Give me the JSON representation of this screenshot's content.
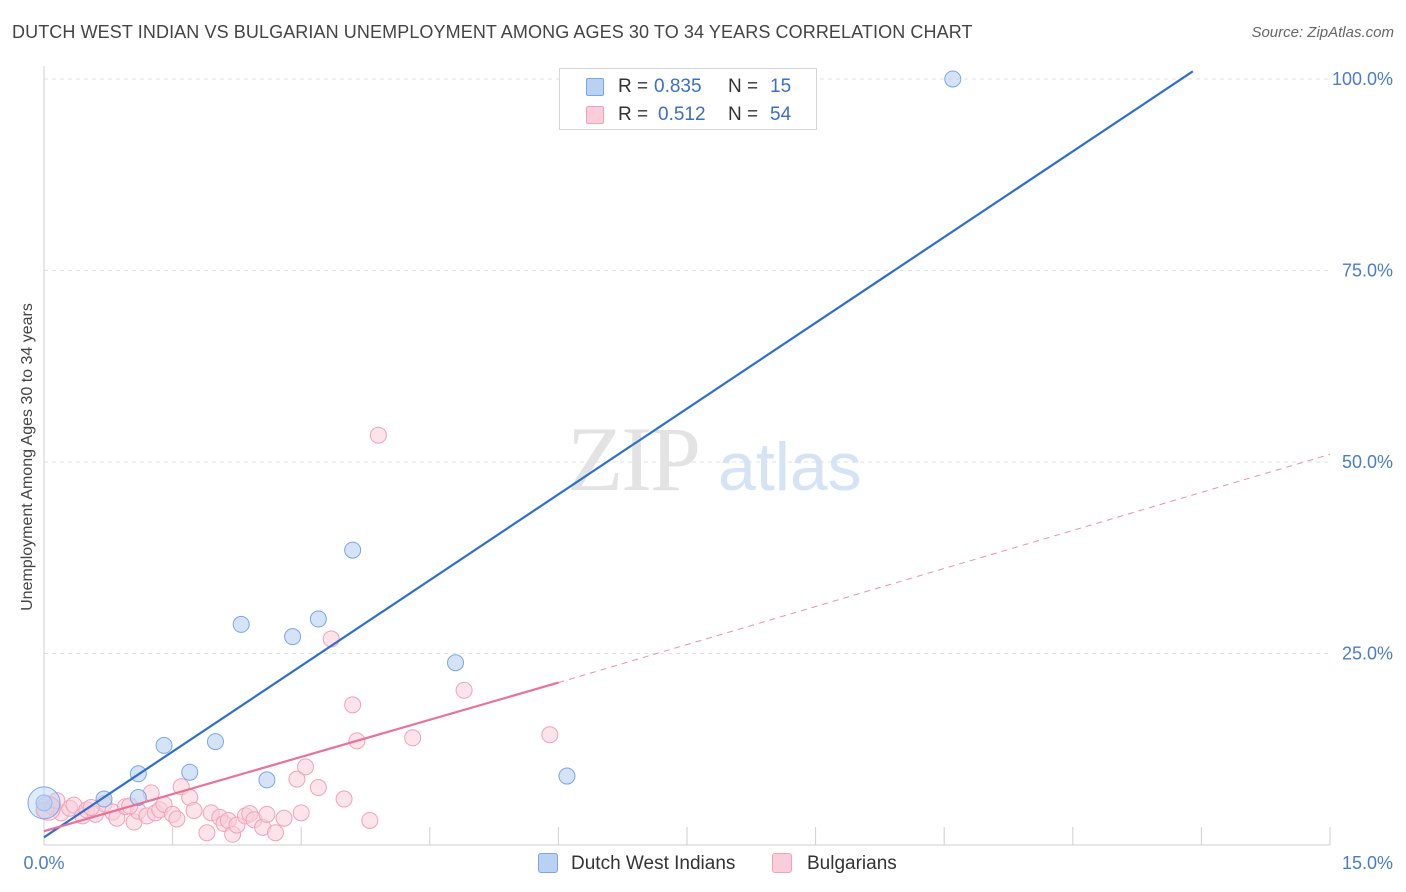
{
  "chart_data": {
    "type": "scatter",
    "title": "DUTCH WEST INDIAN VS BULGARIAN UNEMPLOYMENT AMONG AGES 30 TO 34 YEARS CORRELATION CHART",
    "source": "Source: ZipAtlas.com",
    "xlabel": "",
    "ylabel": "Unemployment Among Ages 30 to 34 years",
    "xlim": [
      0,
      15
    ],
    "ylim": [
      0,
      102
    ],
    "x_tick_labels": [
      "0.0%",
      "15.0%"
    ],
    "y_ticks": [
      25,
      50,
      75,
      100
    ],
    "y_tick_labels": [
      "25.0%",
      "50.0%",
      "75.0%",
      "100.0%"
    ],
    "grid": true,
    "watermark": "ZIPatlas",
    "legend": {
      "position": "top-center",
      "entries": [
        {
          "r_label": "R =",
          "r_value": "0.835",
          "n_label": "N =",
          "n_value": "15"
        },
        {
          "r_label": "R =",
          "r_value": "0.512",
          "n_label": "N =",
          "n_value": "54"
        }
      ]
    },
    "series": [
      {
        "name": "Dutch West Indians",
        "color": "#7aa6e6",
        "fill": "#b9d1f3",
        "line_color": "#2f6fcc",
        "trend": {
          "x0": 0.0,
          "y0": 1.0,
          "x1": 13.4,
          "y1": 101.0
        },
        "points": [
          [
            0.0,
            5.5
          ],
          [
            0.7,
            6.0
          ],
          [
            1.1,
            6.2
          ],
          [
            1.1,
            9.3
          ],
          [
            1.4,
            13.0
          ],
          [
            1.7,
            9.5
          ],
          [
            2.0,
            13.5
          ],
          [
            2.3,
            28.8
          ],
          [
            2.6,
            8.5
          ],
          [
            2.9,
            27.2
          ],
          [
            3.2,
            29.5
          ],
          [
            3.6,
            38.5
          ],
          [
            4.8,
            23.8
          ],
          [
            6.1,
            9.0
          ],
          [
            10.6,
            100.0
          ]
        ]
      },
      {
        "name": "Bulgarians",
        "color": "#f0a2bb",
        "fill": "#f9cdd9",
        "line_color": "#e8729a",
        "trend": {
          "x0": 0.0,
          "y0": 1.8,
          "x1": 6.0,
          "y1": 21.2
        },
        "trend_dashed": {
          "x0": 6.0,
          "y0": 21.2,
          "x1": 15.0,
          "y1": 51.0
        },
        "points": [
          [
            0.0,
            4.5
          ],
          [
            0.1,
            5.0
          ],
          [
            0.2,
            4.2
          ],
          [
            0.3,
            4.8
          ],
          [
            0.35,
            5.2
          ],
          [
            0.45,
            3.8
          ],
          [
            0.5,
            4.6
          ],
          [
            0.6,
            4.0
          ],
          [
            0.7,
            5.4
          ],
          [
            0.8,
            4.3
          ],
          [
            0.85,
            3.5
          ],
          [
            0.95,
            5.0
          ],
          [
            1.05,
            3.0
          ],
          [
            1.1,
            4.4
          ],
          [
            1.2,
            3.8
          ],
          [
            1.25,
            6.8
          ],
          [
            1.3,
            4.2
          ],
          [
            1.35,
            4.6
          ],
          [
            1.4,
            5.3
          ],
          [
            1.5,
            4.0
          ],
          [
            1.55,
            3.4
          ],
          [
            1.6,
            7.6
          ],
          [
            1.7,
            6.2
          ],
          [
            1.75,
            4.5
          ],
          [
            1.9,
            1.6
          ],
          [
            1.95,
            4.2
          ],
          [
            2.05,
            3.6
          ],
          [
            2.1,
            2.8
          ],
          [
            2.15,
            3.2
          ],
          [
            2.2,
            1.4
          ],
          [
            2.25,
            2.6
          ],
          [
            2.35,
            3.8
          ],
          [
            2.4,
            4.1
          ],
          [
            2.45,
            3.3
          ],
          [
            2.55,
            2.3
          ],
          [
            2.6,
            4.0
          ],
          [
            2.7,
            1.6
          ],
          [
            2.8,
            3.5
          ],
          [
            2.95,
            8.6
          ],
          [
            3.0,
            4.2
          ],
          [
            3.05,
            10.2
          ],
          [
            3.2,
            7.5
          ],
          [
            3.35,
            26.9
          ],
          [
            3.5,
            6.0
          ],
          [
            3.6,
            18.3
          ],
          [
            3.65,
            13.6
          ],
          [
            3.8,
            3.2
          ],
          [
            3.9,
            53.5
          ],
          [
            4.3,
            14.0
          ],
          [
            4.9,
            20.2
          ],
          [
            5.9,
            14.4
          ],
          [
            0.15,
            5.8
          ],
          [
            0.55,
            4.9
          ],
          [
            1.0,
            5.1
          ]
        ]
      }
    ]
  },
  "bottom_legend": [
    "Dutch West Indians",
    "Bulgarians"
  ]
}
